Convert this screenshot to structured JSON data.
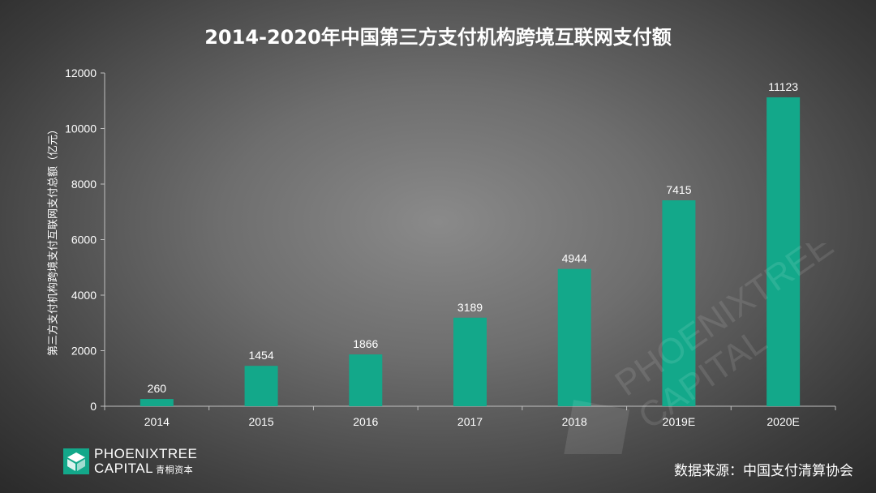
{
  "title": "2014-2020年中国第三方支付机构跨境互联网支付额",
  "chart_data": {
    "type": "bar",
    "categories": [
      "2014",
      "2015",
      "2016",
      "2017",
      "2018",
      "2019E",
      "2020E"
    ],
    "values": [
      260,
      1454,
      1866,
      3189,
      4944,
      7415,
      11123
    ],
    "data_labels": [
      "260",
      "1454",
      "1866",
      "3189",
      "4944",
      "7415",
      "11123"
    ],
    "ylabel": "第三方支付机构跨境支付互联网支付总额（亿元）",
    "xlabel": "",
    "ylim": [
      0,
      12000
    ],
    "yticks": [
      0,
      2000,
      4000,
      6000,
      8000,
      10000,
      12000
    ],
    "grid": false,
    "bar_color": "#13a88a",
    "axis_color": "#bfbfbf"
  },
  "logo": {
    "line1": "PHOENIXTREE",
    "line2": "CAPITAL",
    "line2_cn": "青桐资本",
    "mark_color": "#13a88a"
  },
  "source": "数据来源：中国支付清算协会"
}
